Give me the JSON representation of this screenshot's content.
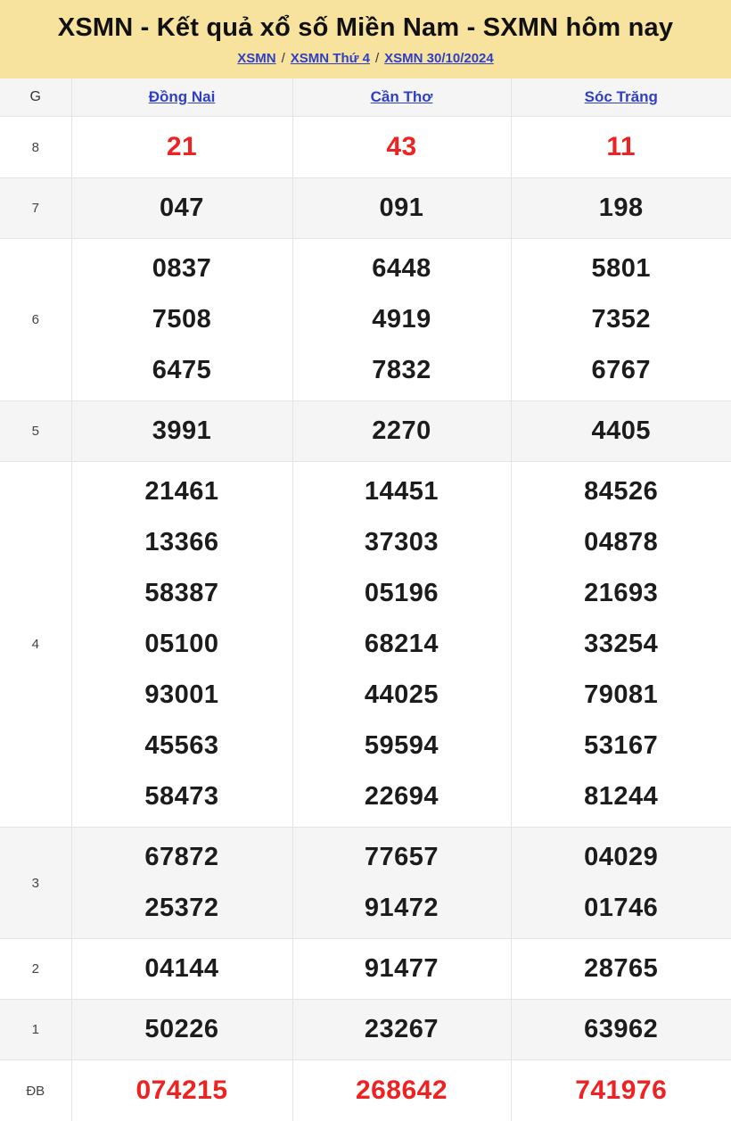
{
  "header": {
    "title": "XSMN - Kết quả xổ số Miền Nam - SXMN hôm nay",
    "separator": "/",
    "breadcrumb": [
      {
        "label": "XSMN"
      },
      {
        "label": "XSMN Thứ 4"
      },
      {
        "label": "XSMN 30/10/2024"
      }
    ]
  },
  "table": {
    "prize_col_header": "G",
    "provinces": [
      "Đồng Nai",
      "Cần Thơ",
      "Sóc Trăng"
    ],
    "rows": [
      {
        "prize": "8",
        "highlight": true,
        "values": [
          [
            "21"
          ],
          [
            "43"
          ],
          [
            "11"
          ]
        ]
      },
      {
        "prize": "7",
        "highlight": false,
        "values": [
          [
            "047"
          ],
          [
            "091"
          ],
          [
            "198"
          ]
        ]
      },
      {
        "prize": "6",
        "highlight": false,
        "values": [
          [
            "0837",
            "7508",
            "6475"
          ],
          [
            "6448",
            "4919",
            "7832"
          ],
          [
            "5801",
            "7352",
            "6767"
          ]
        ]
      },
      {
        "prize": "5",
        "highlight": false,
        "values": [
          [
            "3991"
          ],
          [
            "2270"
          ],
          [
            "4405"
          ]
        ]
      },
      {
        "prize": "4",
        "highlight": false,
        "values": [
          [
            "21461",
            "13366",
            "58387",
            "05100",
            "93001",
            "45563",
            "58473"
          ],
          [
            "14451",
            "37303",
            "05196",
            "68214",
            "44025",
            "59594",
            "22694"
          ],
          [
            "84526",
            "04878",
            "21693",
            "33254",
            "79081",
            "53167",
            "81244"
          ]
        ]
      },
      {
        "prize": "3",
        "highlight": false,
        "values": [
          [
            "67872",
            "25372"
          ],
          [
            "77657",
            "91472"
          ],
          [
            "04029",
            "01746"
          ]
        ]
      },
      {
        "prize": "2",
        "highlight": false,
        "values": [
          [
            "04144"
          ],
          [
            "91477"
          ],
          [
            "28765"
          ]
        ]
      },
      {
        "prize": "1",
        "highlight": false,
        "values": [
          [
            "50226"
          ],
          [
            "23267"
          ],
          [
            "63962"
          ]
        ]
      },
      {
        "prize": "ĐB",
        "highlight": true,
        "values": [
          [
            "074215"
          ],
          [
            "268642"
          ],
          [
            "741976"
          ]
        ]
      }
    ]
  },
  "colors": {
    "banner_bg": "#f7e39e",
    "link_blue": "#2f3fc3",
    "highlight_red": "#ee2222",
    "row_alt_bg": "#f5f5f5",
    "border": "#e4e4e4",
    "number_black": "#1c1c1c"
  }
}
